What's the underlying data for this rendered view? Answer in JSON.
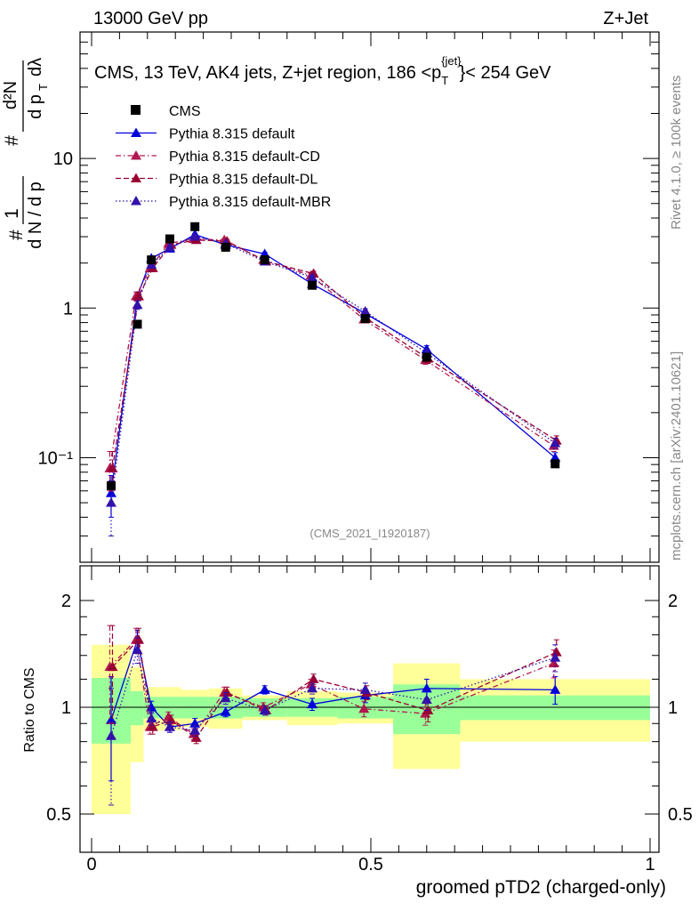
{
  "header": {
    "left": "13000 GeV pp",
    "right": "Z+Jet"
  },
  "plot_title": "CMS, 13 TeV, AK4 jets, Z+jet region, 186 <p_T^{jet}> < 254 GeV",
  "title_parts": {
    "main": "CMS, 13 TeV, AK4 jets, Z+jet region, 186 <p",
    "sub": "T",
    "sup": "{jet}",
    "tail": "}< 254 GeV"
  },
  "ylabel_main": "1/N dN/dp_T d²N/dp_T dλ",
  "ylabel_parts": {
    "num1": "1",
    "den1": "d N / d p",
    "num2": "d²N",
    "den2": "d p",
    "tail": "dλ",
    "sub": "T",
    "hash": "#"
  },
  "ylabel_ratio": "Ratio to CMS",
  "xlabel": "groomed pTD2 (charged-only)",
  "analysis_id": "(CMS_2021_I1920187)",
  "side_right_top": "Rivet 4.1.0, ≥ 100k events",
  "side_right_bottom": "mcplots.cern.ch [arXiv:2401.10621]",
  "main_ticks": {
    "y": [
      {
        "label": "10",
        "value": 10
      },
      {
        "label": "1",
        "value": 1
      },
      {
        "label": "10⁻¹",
        "value": 0.1
      }
    ],
    "x": [
      {
        "label": "0",
        "value": 0
      },
      {
        "label": "0.5",
        "value": 0.5
      },
      {
        "label": "1",
        "value": 1
      }
    ]
  },
  "ratio_ticks": {
    "y": [
      {
        "label": "2",
        "value": 2
      },
      {
        "label": "1",
        "value": 1
      },
      {
        "label": "0.5",
        "value": 0.5
      }
    ]
  },
  "legend": [
    {
      "label": "CMS",
      "style": "data"
    },
    {
      "label": "Pythia 8.315 default",
      "style": "solid"
    },
    {
      "label": "Pythia 8.315 default-CD",
      "style": "dashdot"
    },
    {
      "label": "Pythia 8.315 default-DL",
      "style": "dashed"
    },
    {
      "label": "Pythia 8.315 default-MBR",
      "style": "dotted"
    }
  ],
  "colors": {
    "data": "#000000",
    "default": "#0000dd",
    "cd": "#b0174f",
    "dl": "#990033",
    "mbr": "#3311aa",
    "band_outer": "#ffff99",
    "band_inner": "#99ff99"
  },
  "chart_data": [
    {
      "type": "line",
      "scale": "log",
      "title": "CMS, 13 TeV, AK4 jets, Z+jet region, 186 <p_T^{jet}> < 254 GeV",
      "xlabel": "groomed pTD2 (charged-only)",
      "ylabel": "1/N dN/dp_T d²N/dp_T dλ",
      "xlim": [
        0,
        1
      ],
      "ylim": [
        0.02,
        70
      ],
      "bin_edges": [
        0,
        0.07,
        0.093,
        0.12,
        0.16,
        0.21,
        0.27,
        0.35,
        0.44,
        0.54,
        0.66,
        1.0
      ],
      "x": [
        0.035,
        0.082,
        0.107,
        0.14,
        0.185,
        0.24,
        0.31,
        0.395,
        0.49,
        0.6,
        0.83
      ],
      "data": {
        "name": "CMS",
        "values": [
          0.065,
          0.78,
          2.1,
          2.9,
          3.5,
          2.55,
          2.1,
          1.42,
          0.85,
          0.47,
          0.091
        ],
        "uncertainty_outer": [
          0.5,
          0.3,
          0.14,
          0.14,
          0.12,
          0.13,
          0.08,
          0.11,
          0.1,
          0.33,
          0.2
        ],
        "uncertainty_inner": [
          0.21,
          0.11,
          0.07,
          0.07,
          0.07,
          0.07,
          0.06,
          0.06,
          0.07,
          0.16,
          0.08
        ]
      },
      "series": [
        {
          "name": "Pythia 8.315 default",
          "values": [
            0.058,
            1.2,
            2.15,
            2.5,
            3.1,
            2.65,
            2.3,
            1.45,
            0.92,
            0.53,
            0.1
          ],
          "errors": [
            0.018,
            0.06,
            0.06,
            0.06,
            0.06,
            0.06,
            0.06,
            0.05,
            0.04,
            0.03,
            0.008
          ]
        },
        {
          "name": "Pythia 8.315 default-CD",
          "values": [
            0.085,
            1.2,
            1.85,
            2.7,
            2.9,
            2.85,
            2.1,
            1.65,
            0.84,
            0.45,
            0.12
          ],
          "errors": [
            0.025,
            0.08,
            0.08,
            0.07,
            0.07,
            0.07,
            0.06,
            0.06,
            0.04,
            0.03,
            0.01
          ]
        },
        {
          "name": "Pythia 8.315 default-DL",
          "values": [
            0.085,
            1.2,
            1.85,
            2.65,
            2.85,
            2.8,
            2.05,
            1.7,
            0.85,
            0.46,
            0.13
          ],
          "errors": [
            0.025,
            0.08,
            0.08,
            0.07,
            0.07,
            0.07,
            0.06,
            0.06,
            0.04,
            0.03,
            0.01
          ]
        },
        {
          "name": "Pythia 8.315 default-MBR",
          "values": [
            0.05,
            1.05,
            1.95,
            2.55,
            3.0,
            2.7,
            2.05,
            1.6,
            0.95,
            0.5,
            0.125
          ],
          "errors": [
            0.02,
            0.07,
            0.07,
            0.07,
            0.07,
            0.07,
            0.06,
            0.06,
            0.04,
            0.03,
            0.01
          ]
        }
      ]
    },
    {
      "type": "line",
      "title": "Ratio to CMS",
      "ylabel": "Ratio to CMS",
      "xlabel": "groomed pTD2 (charged-only)",
      "xlim": [
        0,
        1
      ],
      "ylim": [
        0.4,
        2.4
      ],
      "x": [
        0.035,
        0.082,
        0.107,
        0.14,
        0.185,
        0.24,
        0.31,
        0.395,
        0.49,
        0.6,
        0.83
      ],
      "series": [
        {
          "name": "Pythia 8.315 default",
          "values": [
            0.92,
            1.55,
            1.0,
            0.88,
            0.9,
            0.97,
            1.12,
            1.02,
            1.08,
            1.13,
            1.12
          ],
          "errors": [
            0.3,
            0.1,
            0.04,
            0.03,
            0.03,
            0.03,
            0.03,
            0.04,
            0.05,
            0.07,
            0.1
          ]
        },
        {
          "name": "Pythia 8.315 default-CD",
          "values": [
            1.3,
            1.55,
            0.88,
            0.94,
            0.84,
            1.1,
            1.0,
            1.16,
            0.99,
            0.96,
            1.33
          ],
          "errors": [
            0.4,
            0.12,
            0.04,
            0.03,
            0.03,
            0.04,
            0.03,
            0.04,
            0.05,
            0.07,
            0.12
          ]
        },
        {
          "name": "Pythia 8.315 default-DL",
          "values": [
            1.3,
            1.55,
            0.88,
            0.92,
            0.82,
            1.1,
            0.98,
            1.2,
            1.1,
            0.98,
            1.43
          ],
          "errors": [
            0.4,
            0.12,
            0.04,
            0.03,
            0.03,
            0.04,
            0.03,
            0.04,
            0.05,
            0.07,
            0.12
          ]
        },
        {
          "name": "Pythia 8.315 default-MBR",
          "values": [
            0.83,
            1.45,
            0.93,
            0.88,
            0.86,
            1.06,
            0.98,
            1.13,
            1.12,
            1.05,
            1.38
          ],
          "errors": [
            0.3,
            0.12,
            0.04,
            0.03,
            0.03,
            0.04,
            0.03,
            0.04,
            0.05,
            0.07,
            0.12
          ]
        }
      ]
    }
  ]
}
